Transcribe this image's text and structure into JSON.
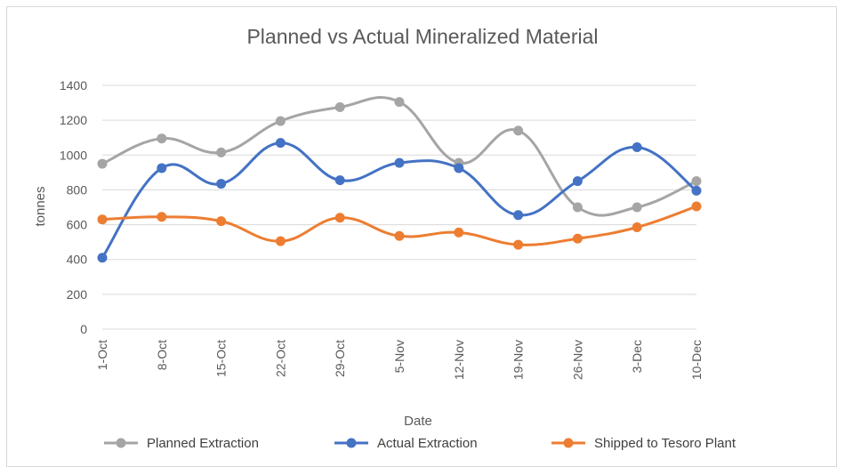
{
  "chart_data": {
    "type": "line",
    "title": "Planned vs Actual Mineralized Material",
    "xlabel": "Date",
    "ylabel": "tonnes",
    "ylim": [
      0,
      1400
    ],
    "yticks": [
      0,
      200,
      400,
      600,
      800,
      1000,
      1200,
      1400
    ],
    "grid": true,
    "legend_position": "bottom",
    "categories": [
      "1-Oct",
      "8-Oct",
      "15-Oct",
      "22-Oct",
      "29-Oct",
      "5-Nov",
      "12-Nov",
      "19-Nov",
      "26-Nov",
      "3-Dec",
      "10-Dec"
    ],
    "series": [
      {
        "name": "Planned Extraction",
        "color": "#a5a5a5",
        "values": [
          950,
          1095,
          1015,
          1195,
          1275,
          1305,
          955,
          1140,
          700,
          700,
          850
        ]
      },
      {
        "name": "Actual Extraction",
        "color": "#4472c4",
        "values": [
          410,
          925,
          835,
          1070,
          855,
          955,
          925,
          655,
          850,
          1045,
          795
        ]
      },
      {
        "name": "Shipped to Tesoro Plant",
        "color": "#ed7d31",
        "values": [
          630,
          645,
          620,
          505,
          640,
          535,
          555,
          485,
          520,
          585,
          705
        ]
      }
    ]
  }
}
